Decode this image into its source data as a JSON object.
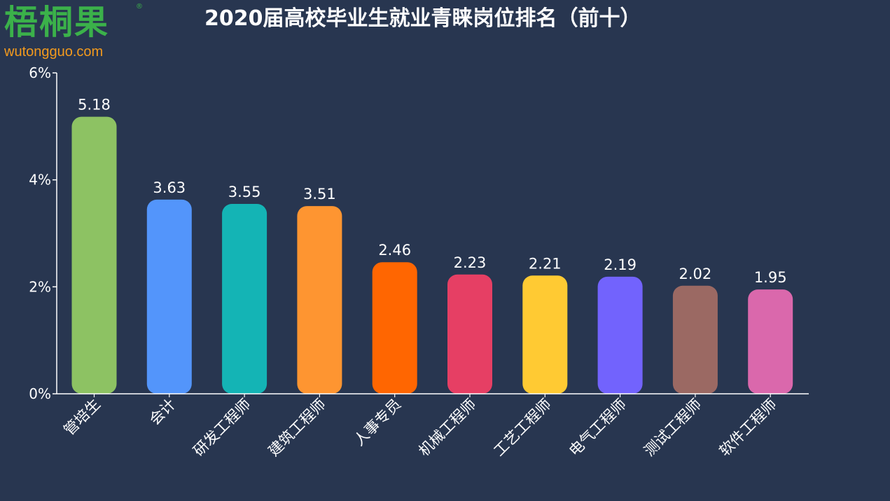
{
  "logo": {
    "name": "梧桐果",
    "registered": "®",
    "url": "wutongguo.com"
  },
  "colors": {
    "background": "#283650",
    "logo_green": "#3bb14a",
    "logo_orange": "#f39a1d",
    "axis": "#ffffff"
  },
  "chart_data": {
    "type": "bar",
    "title": "2020届高校毕业生就业青睐岗位排名（前十）",
    "categories": [
      "管培生",
      "会计",
      "研发工程师",
      "建筑工程师",
      "人事专员",
      "机械工程师",
      "工艺工程师",
      "电气工程师",
      "测试工程师",
      "软件工程师"
    ],
    "values": [
      5.18,
      3.63,
      3.55,
      3.51,
      2.46,
      2.23,
      2.21,
      2.19,
      2.02,
      1.95
    ],
    "value_labels": [
      "5.18",
      "3.63",
      "3.55",
      "3.51",
      "2.46",
      "2.23",
      "2.21",
      "2.19",
      "2.02",
      "1.95"
    ],
    "bar_colors": [
      "#8dc263",
      "#5395fb",
      "#14b4b5",
      "#fe9531",
      "#ff6601",
      "#e63f64",
      "#ffca33",
      "#7263fd",
      "#9b6963",
      "#da68ac"
    ],
    "yticks": [
      0,
      2,
      4,
      6
    ],
    "ytick_labels": [
      "0%",
      "2%",
      "4%",
      "6%"
    ],
    "ylim": [
      0,
      6
    ],
    "xlabel": "",
    "ylabel": "",
    "grid": false,
    "legend": "none"
  }
}
